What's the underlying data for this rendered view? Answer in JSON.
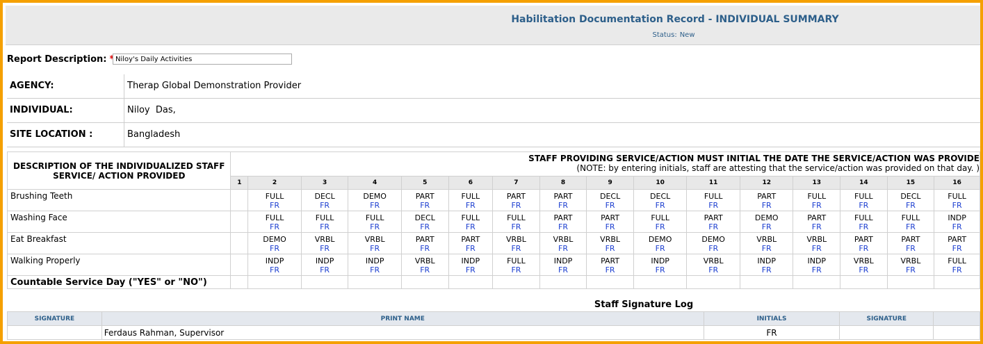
{
  "header": {
    "title": "Habilitation Documentation Record - INDIVIDUAL SUMMARY",
    "status_label": "Status:",
    "status_value": "New"
  },
  "report": {
    "label": "Report Description:",
    "required_mark": "*",
    "value": "Niloy's Daily Activities"
  },
  "info": {
    "agency_label": "AGENCY:",
    "agency_value": "Therap Global Demonstration Provider",
    "individual_label": "INDIVIDUAL:",
    "individual_value": "Niloy  Das,",
    "site_label": "SITE LOCATION :",
    "site_value": "Bangladesh"
  },
  "grid": {
    "desc_header": "DESCRIPTION OF THE INDIVIDUALIZED STAFF SERVICE/ ACTION PROVIDED",
    "staff_header": "STAFF PROVIDING SERVICE/ACTION MUST INITIAL THE DATE THE SERVICE/ACTION WAS PROVIDE",
    "staff_note": "(NOTE: by entering initials, staff are attesting that the service/action was provided on that day. )",
    "days": [
      "1",
      "2",
      "3",
      "4",
      "5",
      "6",
      "7",
      "8",
      "9",
      "10",
      "11",
      "12",
      "13",
      "14",
      "15",
      "16"
    ],
    "rows": [
      {
        "name": "Brushing Teeth",
        "codes": [
          "",
          "FULL",
          "DECL",
          "DEMO",
          "PART",
          "FULL",
          "PART",
          "PART",
          "DECL",
          "DECL",
          "FULL",
          "PART",
          "FULL",
          "FULL",
          "DECL",
          "FULL"
        ]
      },
      {
        "name": "Washing Face",
        "codes": [
          "",
          "FULL",
          "FULL",
          "FULL",
          "DECL",
          "FULL",
          "FULL",
          "PART",
          "PART",
          "FULL",
          "PART",
          "DEMO",
          "PART",
          "FULL",
          "FULL",
          "INDP"
        ]
      },
      {
        "name": "Eat Breakfast",
        "codes": [
          "",
          "DEMO",
          "VRBL",
          "VRBL",
          "PART",
          "PART",
          "VRBL",
          "VRBL",
          "VRBL",
          "DEMO",
          "DEMO",
          "VRBL",
          "VRBL",
          "PART",
          "PART",
          "PART"
        ]
      },
      {
        "name": "Walking Properly",
        "codes": [
          "",
          "INDP",
          "INDP",
          "INDP",
          "VRBL",
          "INDP",
          "FULL",
          "INDP",
          "PART",
          "INDP",
          "VRBL",
          "INDP",
          "INDP",
          "VRBL",
          "VRBL",
          "FULL"
        ]
      }
    ],
    "initials": "FR",
    "countable_label": "Countable Service Day (\"YES\" or \"NO\")"
  },
  "log": {
    "title": "Staff Signature Log",
    "headers": [
      "SIGNATURE",
      "PRINT NAME",
      "INITIALS",
      "SIGNATURE"
    ],
    "rows": [
      {
        "signature": "",
        "print_name": "Ferdaus Rahman, Supervisor",
        "initials": "FR",
        "signature2": ""
      }
    ]
  }
}
